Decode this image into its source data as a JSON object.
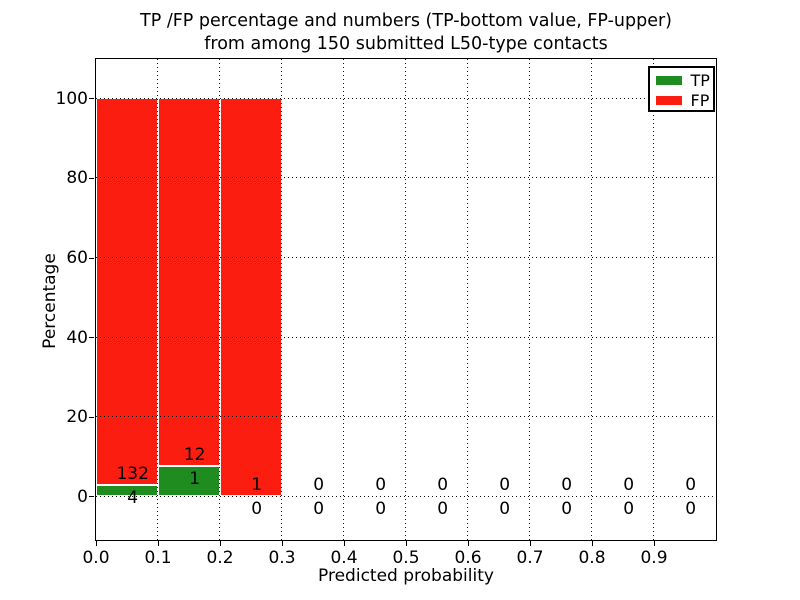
{
  "chart_data": {
    "type": "bar",
    "stacked": true,
    "title_line1": "TP /FP percentage and numbers (TP-bottom value, FP-upper)",
    "title_line2": "from among 150 submitted L50-type contacts",
    "xlabel": "Predicted probability",
    "ylabel": "Percentage",
    "xlim": [
      0,
      1.0
    ],
    "ylim": [
      -10.8,
      110
    ],
    "x_tick_labels": [
      "0.0",
      "0.1",
      "0.2",
      "0.3",
      "0.4",
      "0.5",
      "0.6",
      "0.7",
      "0.8",
      "0.9"
    ],
    "y_ticks": [
      0,
      20,
      40,
      60,
      80,
      100
    ],
    "bin_width": 0.1,
    "total_contacts": 150,
    "bins": [
      {
        "x_start": 0.0,
        "tp": 4,
        "fp": 132
      },
      {
        "x_start": 0.1,
        "tp": 1,
        "fp": 12
      },
      {
        "x_start": 0.2,
        "tp": 0,
        "fp": 1
      },
      {
        "x_start": 0.3,
        "tp": 0,
        "fp": 0
      },
      {
        "x_start": 0.4,
        "tp": 0,
        "fp": 0
      },
      {
        "x_start": 0.5,
        "tp": 0,
        "fp": 0
      },
      {
        "x_start": 0.6,
        "tp": 0,
        "fp": 0
      },
      {
        "x_start": 0.7,
        "tp": 0,
        "fp": 0
      },
      {
        "x_start": 0.8,
        "tp": 0,
        "fp": 0
      },
      {
        "x_start": 0.9,
        "tp": 0,
        "fp": 0
      }
    ],
    "series": [
      {
        "name": "TP",
        "color": "#1e8c1e",
        "values": [
          4,
          1,
          0,
          0,
          0,
          0,
          0,
          0,
          0,
          0
        ]
      },
      {
        "name": "FP",
        "color": "#fb1d10",
        "values": [
          132,
          12,
          1,
          0,
          0,
          0,
          0,
          0,
          0,
          0
        ]
      }
    ],
    "legend": {
      "position": "upper right",
      "entries": [
        {
          "label": "TP",
          "color": "#1e8c1e"
        },
        {
          "label": "FP",
          "color": "#fb1d10"
        }
      ]
    },
    "grid": {
      "style": "dotted",
      "color": "#111111"
    },
    "annotation_rule": "FP count printed just above TP bar top, TP count printed just below it"
  }
}
